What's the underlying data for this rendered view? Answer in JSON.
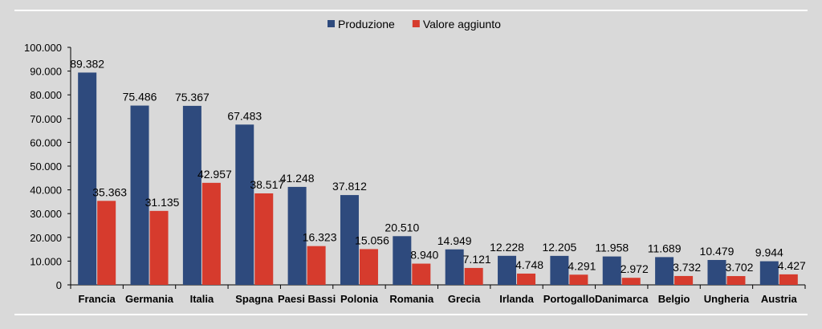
{
  "chart_data": {
    "type": "bar",
    "title": "",
    "xlabel": "",
    "ylabel": "",
    "ylim": [
      0,
      100000
    ],
    "yticks": [
      0,
      10000,
      20000,
      30000,
      40000,
      50000,
      60000,
      70000,
      80000,
      90000,
      100000
    ],
    "ytick_labels": [
      "0",
      "10.000",
      "20.000",
      "30.000",
      "40.000",
      "50.000",
      "60.000",
      "70.000",
      "80.000",
      "90.000",
      "100.000"
    ],
    "grid": false,
    "legend_position": "top-center",
    "categories": [
      "Francia",
      "Germania",
      "Italia",
      "Spagna",
      "Paesi Bassi",
      "Polonia",
      "Romania",
      "Grecia",
      "Irlanda",
      "Portogallo",
      "Danimarca",
      "Belgio",
      "Ungheria",
      "Austria"
    ],
    "series": [
      {
        "name": "Produzione",
        "color": "#2e4a7d",
        "values": [
          89382,
          75486,
          75367,
          67483,
          41248,
          37812,
          20510,
          14949,
          12228,
          12205,
          11958,
          11689,
          10479,
          9944
        ],
        "labels": [
          "89.382",
          "75.486",
          "75.367",
          "67.483",
          "41.248",
          "37.812",
          "20.510",
          "14.949",
          "12.228",
          "12.205",
          "11.958",
          "11.689",
          "10.479",
          "9.944"
        ]
      },
      {
        "name": "Valore aggiunto",
        "color": "#d63b2d",
        "values": [
          35363,
          31135,
          42957,
          38517,
          16323,
          15056,
          8940,
          7121,
          4748,
          4291,
          2972,
          3732,
          3702,
          4427
        ],
        "labels": [
          "35.363",
          "31.135",
          "42.957",
          "38.517",
          "16.323",
          "15.056",
          "8.940",
          "7.121",
          "4.748",
          "4.291",
          "2.972",
          "3.732",
          "3.702",
          "4.427"
        ]
      }
    ]
  }
}
